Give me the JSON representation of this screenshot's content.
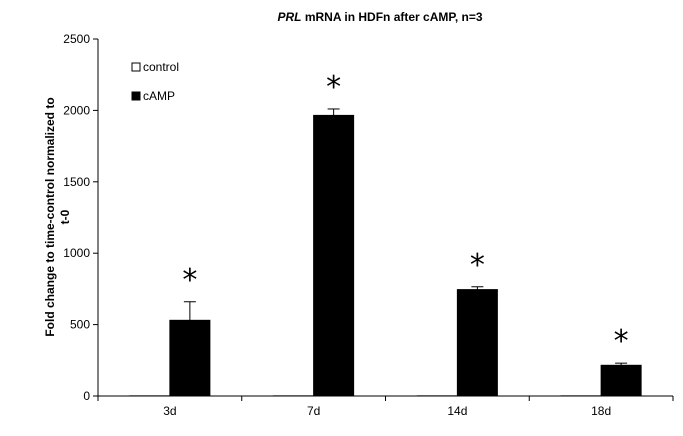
{
  "chart_data": {
    "type": "bar",
    "title_italic": "PRL",
    "title_rest": " mRNA in HDFn after cAMP, n=3",
    "ylabel_line1": "Fold change to time-control normalized to",
    "ylabel_line2": "t-0",
    "xlabel": "",
    "categories": [
      "3d",
      "7d",
      "14d",
      "18d"
    ],
    "series": [
      {
        "name": "control",
        "values": [
          1,
          1,
          1,
          1
        ],
        "color": "#ffffff"
      },
      {
        "name": "cAMP",
        "values": [
          530,
          1965,
          745,
          215
        ],
        "errors": [
          130,
          45,
          20,
          15
        ],
        "color": "#000000"
      }
    ],
    "significance_marker": "*",
    "significant": [
      true,
      true,
      true,
      true
    ],
    "ylim": [
      0,
      2500
    ],
    "yticks": [
      "0",
      "500",
      "1000",
      "1500",
      "2000",
      "2500"
    ],
    "legend_position": "top-left",
    "grid": false
  }
}
